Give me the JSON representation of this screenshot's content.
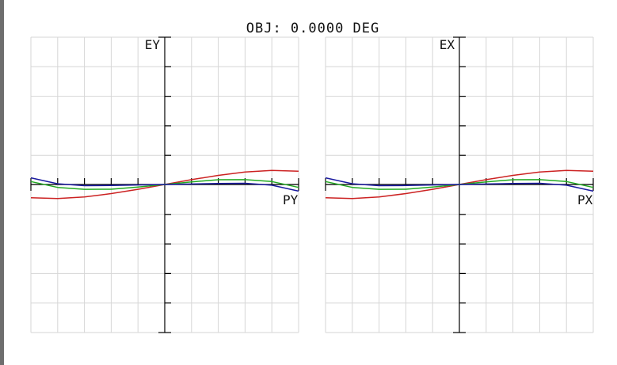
{
  "title": "OBJ: 0.0000 DEG",
  "chart_data": [
    {
      "type": "line",
      "panel": "tangential",
      "xlabel": "PY",
      "ylabel": "EY",
      "xlim": [
        -1,
        1
      ],
      "ylim": [
        -1,
        1
      ],
      "grid": true,
      "series": [
        {
          "color": "#cc2222",
          "x": [
            -1,
            -0.8,
            -0.6,
            -0.4,
            -0.2,
            0,
            0.2,
            0.4,
            0.6,
            0.8,
            1
          ],
          "y": [
            -0.09,
            -0.095,
            -0.085,
            -0.062,
            -0.033,
            0,
            0.033,
            0.062,
            0.085,
            0.095,
            0.09
          ]
        },
        {
          "color": "#22aa22",
          "x": [
            -1,
            -0.8,
            -0.6,
            -0.4,
            -0.2,
            0,
            0.2,
            0.4,
            0.6,
            0.8,
            1
          ],
          "y": [
            0.02,
            -0.02,
            -0.033,
            -0.032,
            -0.018,
            0,
            0.018,
            0.032,
            0.033,
            0.02,
            -0.02
          ]
        },
        {
          "color": "#1a1aa0",
          "x": [
            -1,
            -0.8,
            -0.6,
            -0.4,
            -0.2,
            0,
            0.2,
            0.4,
            0.6,
            0.8,
            1
          ],
          "y": [
            0.045,
            0.005,
            -0.008,
            -0.007,
            -0.003,
            0,
            0.003,
            0.007,
            0.008,
            -0.005,
            -0.045
          ]
        }
      ]
    },
    {
      "type": "line",
      "panel": "sagittal",
      "xlabel": "PX",
      "ylabel": "EX",
      "xlim": [
        -1,
        1
      ],
      "ylim": [
        -1,
        1
      ],
      "grid": true,
      "series": [
        {
          "color": "#cc2222",
          "x": [
            -1,
            -0.8,
            -0.6,
            -0.4,
            -0.2,
            0,
            0.2,
            0.4,
            0.6,
            0.8,
            1
          ],
          "y": [
            -0.09,
            -0.095,
            -0.085,
            -0.062,
            -0.033,
            0,
            0.033,
            0.062,
            0.085,
            0.095,
            0.09
          ]
        },
        {
          "color": "#22aa22",
          "x": [
            -1,
            -0.8,
            -0.6,
            -0.4,
            -0.2,
            0,
            0.2,
            0.4,
            0.6,
            0.8,
            1
          ],
          "y": [
            0.02,
            -0.02,
            -0.033,
            -0.032,
            -0.018,
            0,
            0.018,
            0.032,
            0.033,
            0.02,
            -0.02
          ]
        },
        {
          "color": "#1a1aa0",
          "x": [
            -1,
            -0.8,
            -0.6,
            -0.4,
            -0.2,
            0,
            0.2,
            0.4,
            0.6,
            0.8,
            1
          ],
          "y": [
            0.045,
            0.005,
            -0.008,
            -0.007,
            -0.003,
            0,
            0.003,
            0.007,
            0.008,
            -0.005,
            -0.045
          ]
        }
      ]
    }
  ]
}
